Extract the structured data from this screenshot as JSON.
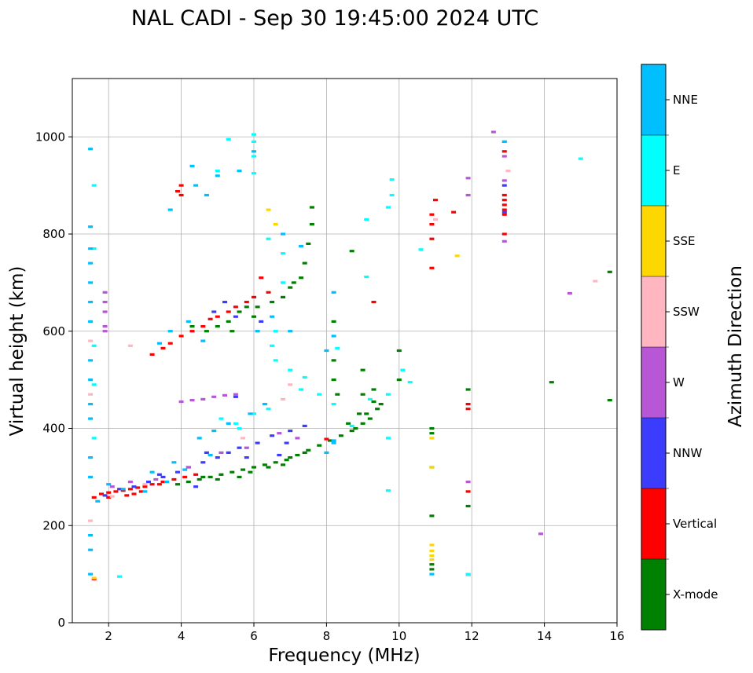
{
  "chart_data": {
    "type": "scatter",
    "title": "NAL CADI - Sep 30 19:45:00 2024 UTC",
    "xlabel": "Frequency (MHz)",
    "ylabel": "Virtual height (km)",
    "xlim": [
      1,
      16
    ],
    "ylim": [
      0,
      1120
    ],
    "xticks": [
      "2",
      "4",
      "6",
      "8",
      "10",
      "12",
      "14",
      "16"
    ],
    "yticks": [
      "0",
      "200",
      "400",
      "600",
      "800",
      "1000"
    ],
    "grid": true,
    "colorbar": {
      "label": "Azimuth Direction",
      "categories": [
        "NNE",
        "E",
        "SSE",
        "SSW",
        "W",
        "NNW",
        "Vertical",
        "X-mode"
      ],
      "colors": [
        "#00bfff",
        "#00ffff",
        "#ffd700",
        "#ffb6c1",
        "#b857d6",
        "#3c3cff",
        "#ff0000",
        "#008000"
      ]
    },
    "series": [
      {
        "name": "X-mode",
        "points": [
          [
            3.9,
            285
          ],
          [
            4.2,
            290
          ],
          [
            4.5,
            295
          ],
          [
            4.8,
            300
          ],
          [
            5.1,
            305
          ],
          [
            5.4,
            310
          ],
          [
            5.7,
            315
          ],
          [
            6.0,
            320
          ],
          [
            6.3,
            325
          ],
          [
            6.6,
            330
          ],
          [
            6.9,
            335
          ],
          [
            7.2,
            345
          ],
          [
            7.5,
            355
          ],
          [
            7.8,
            365
          ],
          [
            8.1,
            375
          ],
          [
            8.4,
            385
          ],
          [
            8.7,
            395
          ],
          [
            9.0,
            410
          ],
          [
            9.2,
            420
          ],
          [
            9.4,
            440
          ],
          [
            9.3,
            455
          ],
          [
            8.9,
            430
          ],
          [
            8.6,
            410
          ],
          [
            6.4,
            320
          ],
          [
            6.8,
            325
          ],
          [
            7.0,
            340
          ],
          [
            7.4,
            350
          ],
          [
            5.0,
            295
          ],
          [
            5.6,
            300
          ],
          [
            5.9,
            310
          ],
          [
            4.6,
            300
          ],
          [
            8.8,
            400
          ],
          [
            9.1,
            430
          ],
          [
            4.3,
            610
          ],
          [
            4.7,
            600
          ],
          [
            5.0,
            610
          ],
          [
            5.3,
            620
          ],
          [
            5.6,
            640
          ],
          [
            5.8,
            650
          ],
          [
            6.1,
            650
          ],
          [
            6.5,
            660
          ],
          [
            6.8,
            670
          ],
          [
            7.1,
            700
          ],
          [
            7.4,
            740
          ],
          [
            7.5,
            780
          ],
          [
            7.6,
            820
          ],
          [
            7.6,
            855
          ],
          [
            6.0,
            630
          ],
          [
            5.4,
            600
          ],
          [
            7.3,
            710
          ],
          [
            7.0,
            690
          ],
          [
            8.2,
            620
          ],
          [
            8.2,
            540
          ],
          [
            8.2,
            500
          ],
          [
            8.7,
            765
          ],
          [
            9.0,
            520
          ],
          [
            9.3,
            480
          ],
          [
            9.0,
            470
          ],
          [
            9.5,
            450
          ],
          [
            10.0,
            560
          ],
          [
            10.0,
            500
          ],
          [
            8.3,
            470
          ],
          [
            10.9,
            400
          ],
          [
            10.9,
            390
          ],
          [
            10.9,
            320
          ],
          [
            10.9,
            220
          ],
          [
            10.9,
            120
          ],
          [
            10.9,
            110
          ],
          [
            11.9,
            480
          ],
          [
            11.9,
            240
          ],
          [
            14.2,
            495
          ],
          [
            15.8,
            458
          ],
          [
            15.8,
            722
          ]
        ]
      },
      {
        "name": "Vertical",
        "points": [
          [
            1.6,
            258
          ],
          [
            1.8,
            265
          ],
          [
            2.0,
            268
          ],
          [
            2.2,
            270
          ],
          [
            2.4,
            272
          ],
          [
            2.6,
            275
          ],
          [
            2.8,
            278
          ],
          [
            3.0,
            280
          ],
          [
            3.2,
            285
          ],
          [
            3.5,
            290
          ],
          [
            3.8,
            295
          ],
          [
            4.1,
            300
          ],
          [
            4.4,
            305
          ],
          [
            2.5,
            262
          ],
          [
            2.9,
            270
          ],
          [
            3.4,
            285
          ],
          [
            2.0,
            258
          ],
          [
            2.7,
            265
          ],
          [
            3.2,
            552
          ],
          [
            3.5,
            565
          ],
          [
            3.7,
            575
          ],
          [
            4.0,
            590
          ],
          [
            4.3,
            600
          ],
          [
            4.6,
            610
          ],
          [
            4.8,
            625
          ],
          [
            5.0,
            630
          ],
          [
            5.3,
            640
          ],
          [
            5.5,
            650
          ],
          [
            5.8,
            660
          ],
          [
            6.0,
            670
          ],
          [
            4.0,
            900
          ],
          [
            4.0,
            880
          ],
          [
            3.9,
            888
          ],
          [
            6.2,
            710
          ],
          [
            6.4,
            680
          ],
          [
            8.0,
            378
          ],
          [
            9.3,
            660
          ],
          [
            10.9,
            840
          ],
          [
            10.9,
            820
          ],
          [
            10.9,
            790
          ],
          [
            10.9,
            730
          ],
          [
            11.0,
            870
          ],
          [
            11.5,
            845
          ],
          [
            11.9,
            450
          ],
          [
            11.9,
            440
          ],
          [
            11.9,
            270
          ],
          [
            11.9,
            98
          ],
          [
            12.9,
            880
          ],
          [
            12.9,
            870
          ],
          [
            12.9,
            860
          ],
          [
            12.9,
            850
          ],
          [
            12.9,
            840
          ],
          [
            12.9,
            970
          ],
          [
            12.9,
            800
          ],
          [
            1.6,
            90
          ]
        ]
      },
      {
        "name": "NNW",
        "points": [
          [
            1.9,
            262
          ],
          [
            2.3,
            275
          ],
          [
            2.7,
            280
          ],
          [
            3.1,
            290
          ],
          [
            3.5,
            300
          ],
          [
            3.9,
            310
          ],
          [
            4.2,
            320
          ],
          [
            4.6,
            330
          ],
          [
            5.0,
            340
          ],
          [
            5.3,
            350
          ],
          [
            5.6,
            360
          ],
          [
            6.1,
            370
          ],
          [
            6.5,
            385
          ],
          [
            7.0,
            395
          ],
          [
            7.4,
            405
          ],
          [
            4.4,
            280
          ],
          [
            3.4,
            305
          ],
          [
            4.7,
            350
          ],
          [
            5.8,
            340
          ],
          [
            6.9,
            370
          ],
          [
            4.9,
            640
          ],
          [
            5.5,
            630
          ],
          [
            6.2,
            620
          ],
          [
            5.2,
            660
          ],
          [
            5.5,
            465
          ],
          [
            6.7,
            345
          ],
          [
            12.9,
            845
          ],
          [
            12.9,
            900
          ],
          [
            11.9,
            98
          ]
        ]
      },
      {
        "name": "W",
        "points": [
          [
            1.9,
            660
          ],
          [
            1.9,
            640
          ],
          [
            1.9,
            610
          ],
          [
            1.9,
            600
          ],
          [
            1.9,
            680
          ],
          [
            4.0,
            455
          ],
          [
            4.3,
            458
          ],
          [
            4.6,
            460
          ],
          [
            4.9,
            465
          ],
          [
            5.2,
            468
          ],
          [
            5.5,
            470
          ],
          [
            3.3,
            295
          ],
          [
            4.2,
            320
          ],
          [
            5.1,
            350
          ],
          [
            5.8,
            360
          ],
          [
            6.7,
            390
          ],
          [
            2.1,
            280
          ],
          [
            2.6,
            290
          ],
          [
            7.2,
            380
          ],
          [
            11.9,
            915
          ],
          [
            11.9,
            880
          ],
          [
            11.9,
            290
          ],
          [
            12.6,
            1010
          ],
          [
            12.9,
            960
          ],
          [
            12.9,
            910
          ],
          [
            12.9,
            785
          ],
          [
            13.9,
            183
          ],
          [
            14.7,
            678
          ]
        ]
      },
      {
        "name": "SSW",
        "points": [
          [
            1.5,
            210
          ],
          [
            1.5,
            580
          ],
          [
            1.5,
            470
          ],
          [
            2.6,
            570
          ],
          [
            2.1,
            260
          ],
          [
            6.8,
            460
          ],
          [
            7.0,
            490
          ],
          [
            3.0,
            285
          ],
          [
            5.7,
            380
          ],
          [
            11.0,
            830
          ],
          [
            11.9,
            98
          ],
          [
            15.4,
            703
          ],
          [
            13.0,
            930
          ]
        ]
      },
      {
        "name": "SSE",
        "points": [
          [
            6.4,
            850
          ],
          [
            10.9,
            160
          ],
          [
            10.9,
            148
          ],
          [
            10.9,
            138
          ],
          [
            10.9,
            130
          ],
          [
            10.9,
            380
          ],
          [
            11.6,
            755
          ],
          [
            10.9,
            320
          ],
          [
            6.6,
            820
          ],
          [
            1.6,
            92
          ]
        ]
      },
      {
        "name": "E",
        "points": [
          [
            5.1,
            420
          ],
          [
            5.5,
            410
          ],
          [
            6.0,
            430
          ],
          [
            6.4,
            440
          ],
          [
            6.6,
            540
          ],
          [
            7.0,
            520
          ],
          [
            7.3,
            480
          ],
          [
            7.8,
            470
          ],
          [
            8.2,
            450
          ],
          [
            8.7,
            405
          ],
          [
            9.2,
            460
          ],
          [
            9.7,
            470
          ],
          [
            10.1,
            520
          ],
          [
            10.3,
            495
          ],
          [
            9.7,
            380
          ],
          [
            9.7,
            272
          ],
          [
            9.8,
            912
          ],
          [
            9.8,
            880
          ],
          [
            9.7,
            855
          ],
          [
            9.1,
            830
          ],
          [
            9.1,
            712
          ],
          [
            8.3,
            565
          ],
          [
            7.4,
            505
          ],
          [
            2.3,
            95
          ],
          [
            1.6,
            900
          ],
          [
            1.6,
            770
          ],
          [
            1.6,
            570
          ],
          [
            1.6,
            490
          ],
          [
            1.6,
            380
          ],
          [
            6.0,
            1005
          ],
          [
            6.0,
            990
          ],
          [
            6.0,
            960
          ],
          [
            6.0,
            925
          ],
          [
            5.3,
            995
          ],
          [
            5.0,
            930
          ],
          [
            6.4,
            790
          ],
          [
            6.8,
            760
          ],
          [
            6.8,
            700
          ],
          [
            6.6,
            600
          ],
          [
            6.5,
            570
          ],
          [
            5.6,
            400
          ],
          [
            10.6,
            768
          ],
          [
            11.9,
            100
          ],
          [
            15.0,
            955
          ],
          [
            12.9,
            990
          ]
        ]
      },
      {
        "name": "NNE",
        "points": [
          [
            1.5,
            975
          ],
          [
            1.5,
            815
          ],
          [
            1.5,
            770
          ],
          [
            1.5,
            740
          ],
          [
            1.5,
            700
          ],
          [
            1.5,
            660
          ],
          [
            1.5,
            620
          ],
          [
            1.5,
            540
          ],
          [
            1.5,
            500
          ],
          [
            1.5,
            450
          ],
          [
            1.5,
            420
          ],
          [
            1.5,
            340
          ],
          [
            1.5,
            300
          ],
          [
            1.5,
            180
          ],
          [
            1.5,
            150
          ],
          [
            1.5,
            100
          ],
          [
            4.3,
            940
          ],
          [
            4.4,
            900
          ],
          [
            4.7,
            880
          ],
          [
            3.7,
            850
          ],
          [
            5.0,
            920
          ],
          [
            5.6,
            930
          ],
          [
            6.0,
            970
          ],
          [
            8.2,
            680
          ],
          [
            8.2,
            590
          ],
          [
            8.0,
            560
          ],
          [
            7.0,
            600
          ],
          [
            6.5,
            630
          ],
          [
            6.1,
            600
          ],
          [
            4.5,
            380
          ],
          [
            4.9,
            395
          ],
          [
            5.3,
            410
          ],
          [
            5.9,
            430
          ],
          [
            6.3,
            450
          ],
          [
            3.0,
            270
          ],
          [
            3.6,
            290
          ],
          [
            4.1,
            315
          ],
          [
            4.8,
            345
          ],
          [
            8.2,
            375
          ],
          [
            8.2,
            370
          ],
          [
            8.0,
            350
          ],
          [
            1.7,
            250
          ],
          [
            2.0,
            285
          ],
          [
            2.4,
            275
          ],
          [
            3.2,
            310
          ],
          [
            3.8,
            330
          ],
          [
            3.4,
            575
          ],
          [
            3.7,
            600
          ],
          [
            4.2,
            620
          ],
          [
            4.6,
            580
          ],
          [
            7.3,
            775
          ],
          [
            6.8,
            800
          ],
          [
            12.9,
            990
          ],
          [
            10.9,
            100
          ]
        ]
      }
    ]
  }
}
